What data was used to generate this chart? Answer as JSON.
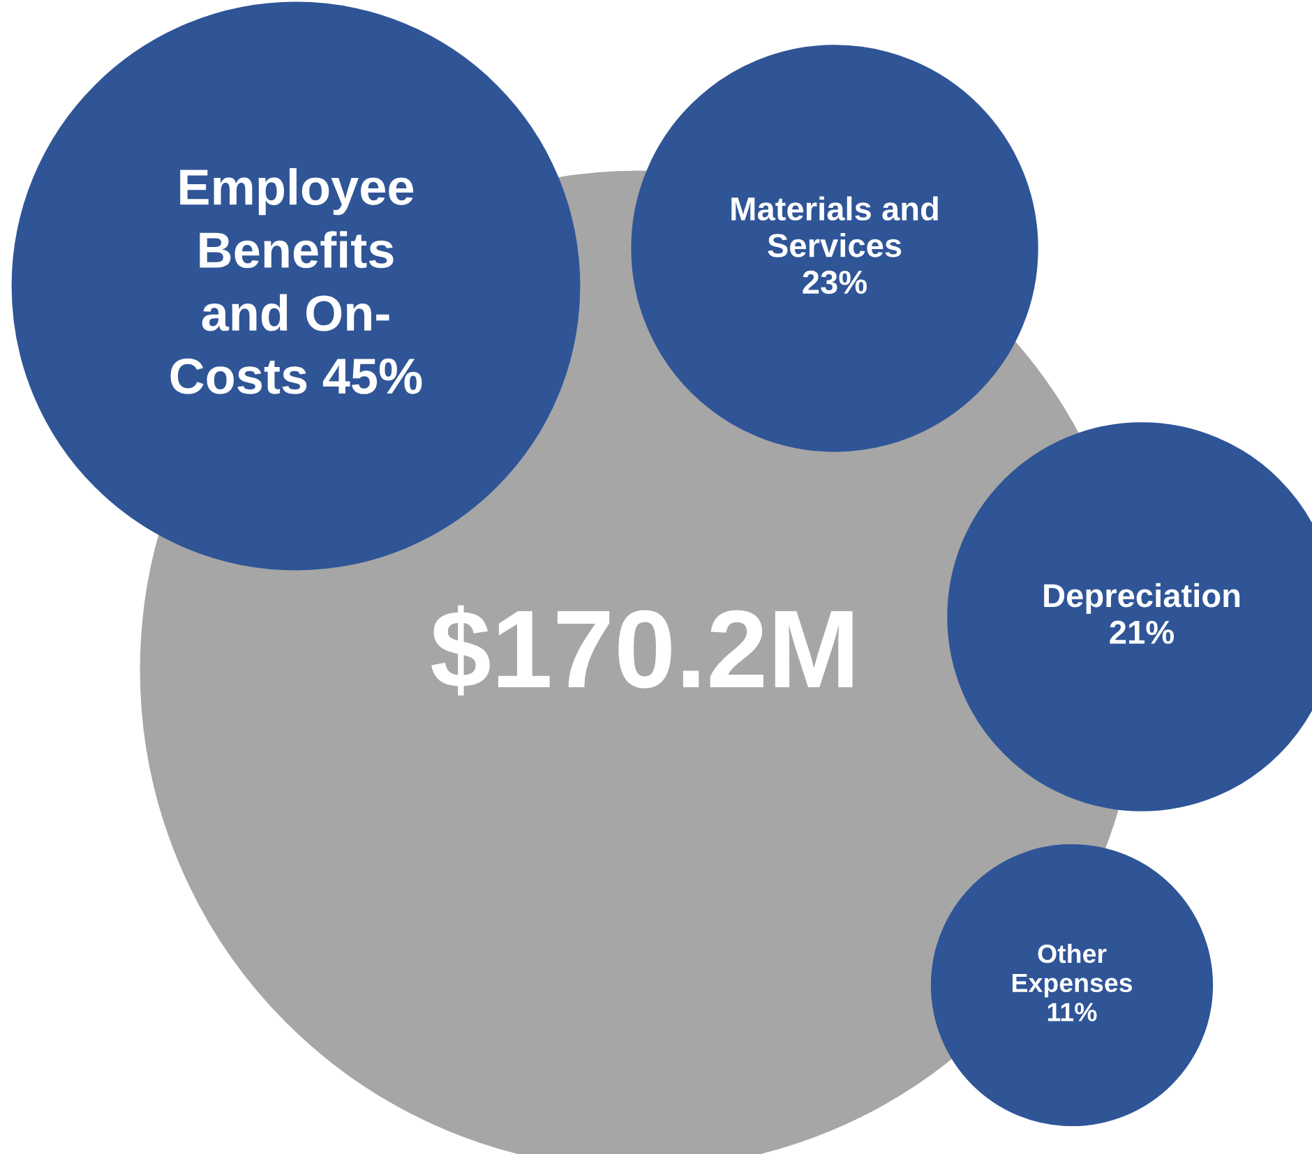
{
  "chart_data": {
    "type": "other",
    "categories": [
      "Employee Benefits and On-Costs",
      "Materials and Services",
      "Depreciation",
      "Other Expenses"
    ],
    "values": [
      45,
      23,
      21,
      11
    ],
    "value_labels": [
      "45%",
      "23%",
      "21%",
      "11%"
    ],
    "colors": [
      "#2f5597",
      "#2f5597",
      "#2f5597",
      "#2f5597"
    ],
    "annotations": [
      "$170.2M"
    ]
  }
}
